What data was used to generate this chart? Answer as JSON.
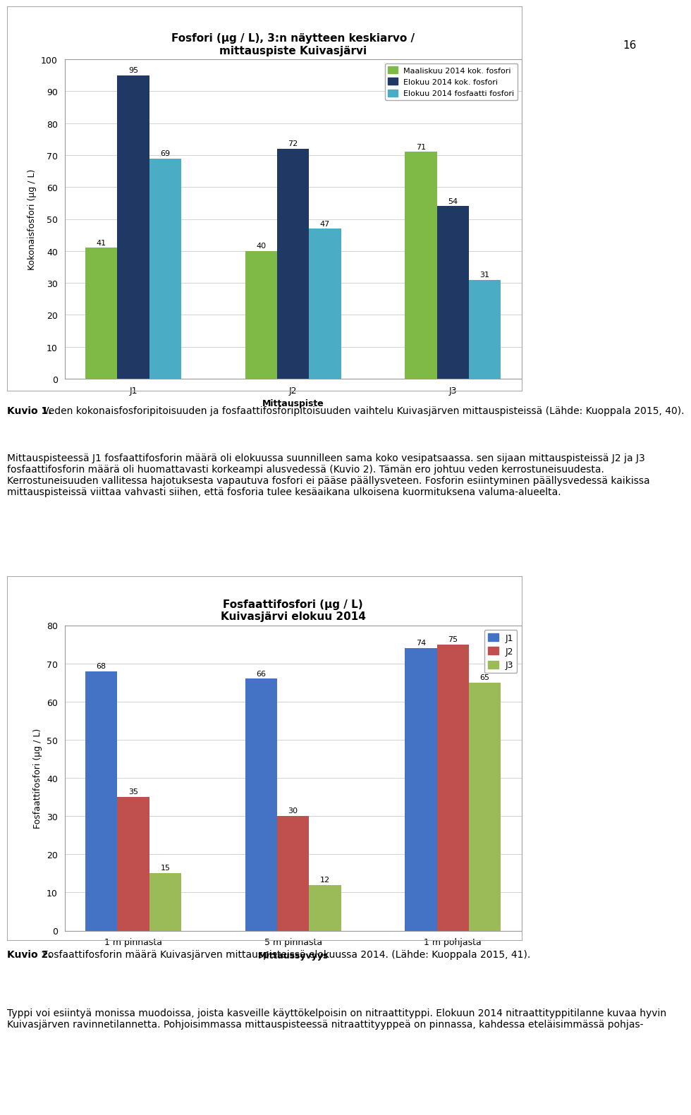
{
  "chart1": {
    "title": "Fosfori (μg / L), 3:n näytteen keskiarvo /\nmittauspiste Kuivasjärvi",
    "ylabel": "Kokonaisfosfori (μg / L)",
    "xlabel": "Mittauspiste",
    "categories": [
      "J1",
      "J2",
      "J3"
    ],
    "series": [
      {
        "label": "Maaliskuu 2014 kok. fosfori",
        "color": "#7fba47",
        "values": [
          41,
          40,
          71
        ]
      },
      {
        "label": "Elokuu 2014 kok. fosfori",
        "color": "#1f3864",
        "values": [
          95,
          72,
          54
        ]
      },
      {
        "label": "Elokuu 2014 fosfaatti fosfori",
        "color": "#4bacc6",
        "values": [
          69,
          47,
          31
        ]
      }
    ],
    "ylim": [
      0,
      100
    ],
    "yticks": [
      0,
      10,
      20,
      30,
      40,
      50,
      60,
      70,
      80,
      90,
      100
    ]
  },
  "chart2": {
    "title": "Fosfaattifosfori (μg / L)\nKuivasjärvi elokuu 2014",
    "ylabel": "Fosfaattifosfori (μg / L)",
    "xlabel": "Mittaussyvyys",
    "categories": [
      "1 m pinnasta",
      "5 m pinnasta",
      "1 m pohjasta"
    ],
    "series": [
      {
        "label": "J1",
        "color": "#4472c4",
        "values": [
          68,
          66,
          74
        ]
      },
      {
        "label": "J2",
        "color": "#c0504d",
        "values": [
          35,
          30,
          75
        ]
      },
      {
        "label": "J3",
        "color": "#9bbb59",
        "values": [
          15,
          12,
          65
        ]
      }
    ],
    "ylim": [
      0,
      80
    ],
    "yticks": [
      0,
      10,
      20,
      30,
      40,
      50,
      60,
      70,
      80
    ]
  },
  "texts": {
    "page_number": "16",
    "caption1_bold": "Kuvio 1.",
    "caption1_rest": " Veden kokonaisfosforipitoisuuden ja fosfaattifosforipitoisuuden vaihtelu Kuivasjärven mittauspisteissä (Lähde: Kuoppala 2015, 40).",
    "paragraph1": "Mittauspisteessä J1 fosfaattifosforin määrä oli elokuussa suunnilleen sama koko vesipatsaassa. sen sijaan mittauspisteissä J2 ja J3 fosfaattifosforin määrä oli huomattavasti korkeampi alusvedessä (Kuvio 2). Tämän ero johtuu veden kerrostuneisuudesta. Kerrostuneisuuden vallitessa hajotuksesta vapautuva fosfori ei pääse päällysveteen. Fosforin esiintyminen päällysvedessä kaikissa mittauspisteissä viittaa vahvasti siihen, että fosforia tulee kesäaikana ulkoisena kuormituksena valuma-alueelta.",
    "caption2_bold": "Kuvio 2.",
    "caption2_rest": " Fosfaattifosforin määrä Kuivasjärven mittauspisteissä elokuussa 2014. (Lähde: Kuoppala 2015, 41).",
    "paragraph2": "Typpi voi esiintyä monissa muodoissa, joista kasveille käyttökelpoisin on nitraattityppi. Elokuun 2014 nitraattityppitilanne kuvaa hyvin Kuivasjärven ravinnetilannetta. Pohjoisimmassa mittauspisteessä nitraattityyppeä on pinnassa, kahdessa eteläisimmässä pohjas-"
  },
  "background_color": "#ffffff",
  "chart_bg": "#ffffff",
  "fontsize_title": 11,
  "fontsize_axis_label": 9,
  "fontsize_ticks": 9,
  "fontsize_text": 10,
  "fontsize_bar_label": 8,
  "fontsize_page": 11
}
